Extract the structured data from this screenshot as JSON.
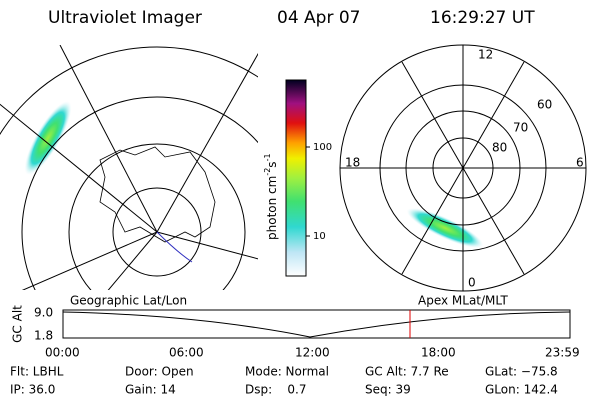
{
  "header": {
    "title": "Ultraviolet Imager",
    "date": "04 Apr 07",
    "time": "16:29:27 UT"
  },
  "colorbar": {
    "label": [
      "photon cm",
      "-2",
      "s",
      "-1"
    ],
    "ticks": [
      "100",
      "10"
    ]
  },
  "polar_plot": {
    "hour_labels": [
      "12",
      "18",
      "6",
      "0"
    ],
    "lat_labels": [
      "60",
      "70",
      "80"
    ]
  },
  "altitude_plot": {
    "axis_label": "GC Alt",
    "yticks": [
      "9.0",
      "1.8"
    ],
    "left_label": "Geographic Lat/Lon",
    "right_label": "Apex MLat/MLT",
    "xticks": [
      "00:00",
      "06:00",
      "12:00",
      "18:00",
      "23:59"
    ]
  },
  "info": {
    "rows": [
      [
        "Flt: LBHL",
        "Door: Open",
        "Mode: Normal",
        "GC Alt: 7.7 Re",
        "GLat: −75.8"
      ],
      [
        "IP: 36.0",
        "Gain: 14",
        "Dsp:    0.7",
        "Seq: 39",
        "GLon: 142.4"
      ]
    ]
  }
}
